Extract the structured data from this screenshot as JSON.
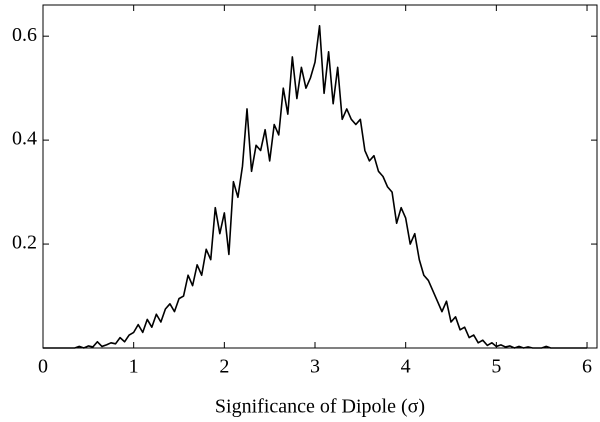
{
  "chart_data": {
    "type": "line",
    "xlabel": "Significance of Dipole (σ)",
    "xlim": [
      0,
      6.11
    ],
    "ylim": [
      0,
      0.66
    ],
    "xticks": [
      0,
      1,
      2,
      3,
      4,
      5,
      6
    ],
    "yticks": [
      0.2,
      0.4,
      0.6
    ],
    "color": "#000000",
    "x": [
      0,
      0.05,
      0.1,
      0.15,
      0.2,
      0.25,
      0.3,
      0.35,
      0.4,
      0.45,
      0.5,
      0.55,
      0.6,
      0.65,
      0.7,
      0.75,
      0.8,
      0.85,
      0.9,
      0.95,
      1,
      1.05,
      1.1,
      1.15,
      1.2,
      1.25,
      1.3,
      1.35,
      1.4,
      1.45,
      1.5,
      1.55,
      1.6,
      1.65,
      1.7,
      1.75,
      1.8,
      1.85,
      1.9,
      1.95,
      2,
      2.05,
      2.1,
      2.15,
      2.2,
      2.25,
      2.3,
      2.35,
      2.4,
      2.45,
      2.5,
      2.55,
      2.6,
      2.65,
      2.7,
      2.75,
      2.8,
      2.85,
      2.9,
      2.95,
      3,
      3.05,
      3.1,
      3.15,
      3.2,
      3.25,
      3.3,
      3.35,
      3.4,
      3.45,
      3.5,
      3.55,
      3.6,
      3.65,
      3.7,
      3.75,
      3.8,
      3.85,
      3.9,
      3.95,
      4,
      4.05,
      4.1,
      4.15,
      4.2,
      4.25,
      4.3,
      4.35,
      4.4,
      4.45,
      4.5,
      4.55,
      4.6,
      4.65,
      4.7,
      4.75,
      4.8,
      4.85,
      4.9,
      4.95,
      5,
      5.05,
      5.1,
      5.15,
      5.2,
      5.25,
      5.3,
      5.35,
      5.4,
      5.45,
      5.5,
      5.55,
      5.6,
      5.65,
      5.7,
      5.75,
      5.8,
      5.85,
      5.9,
      5.95,
      6
    ],
    "values": [
      0,
      0,
      0,
      0,
      0,
      0,
      0,
      0,
      0.003,
      0,
      0.004,
      0.002,
      0.012,
      0.003,
      0.006,
      0.01,
      0.008,
      0.02,
      0.012,
      0.025,
      0.03,
      0.045,
      0.03,
      0.055,
      0.04,
      0.065,
      0.05,
      0.075,
      0.085,
      0.07,
      0.095,
      0.1,
      0.14,
      0.12,
      0.16,
      0.14,
      0.19,
      0.17,
      0.27,
      0.22,
      0.26,
      0.18,
      0.32,
      0.29,
      0.35,
      0.46,
      0.34,
      0.39,
      0.38,
      0.42,
      0.36,
      0.43,
      0.41,
      0.5,
      0.45,
      0.56,
      0.48,
      0.54,
      0.5,
      0.52,
      0.55,
      0.62,
      0.49,
      0.57,
      0.47,
      0.54,
      0.44,
      0.46,
      0.44,
      0.43,
      0.44,
      0.38,
      0.36,
      0.37,
      0.34,
      0.33,
      0.31,
      0.3,
      0.24,
      0.27,
      0.25,
      0.2,
      0.22,
      0.17,
      0.14,
      0.13,
      0.11,
      0.09,
      0.07,
      0.09,
      0.05,
      0.06,
      0.035,
      0.04,
      0.02,
      0.025,
      0.01,
      0.015,
      0.005,
      0.01,
      0.003,
      0.006,
      0.002,
      0.004,
      0,
      0.003,
      0,
      0.002,
      0,
      0,
      0,
      0.003,
      0,
      0,
      0,
      0,
      0,
      0,
      0,
      0,
      0
    ]
  }
}
